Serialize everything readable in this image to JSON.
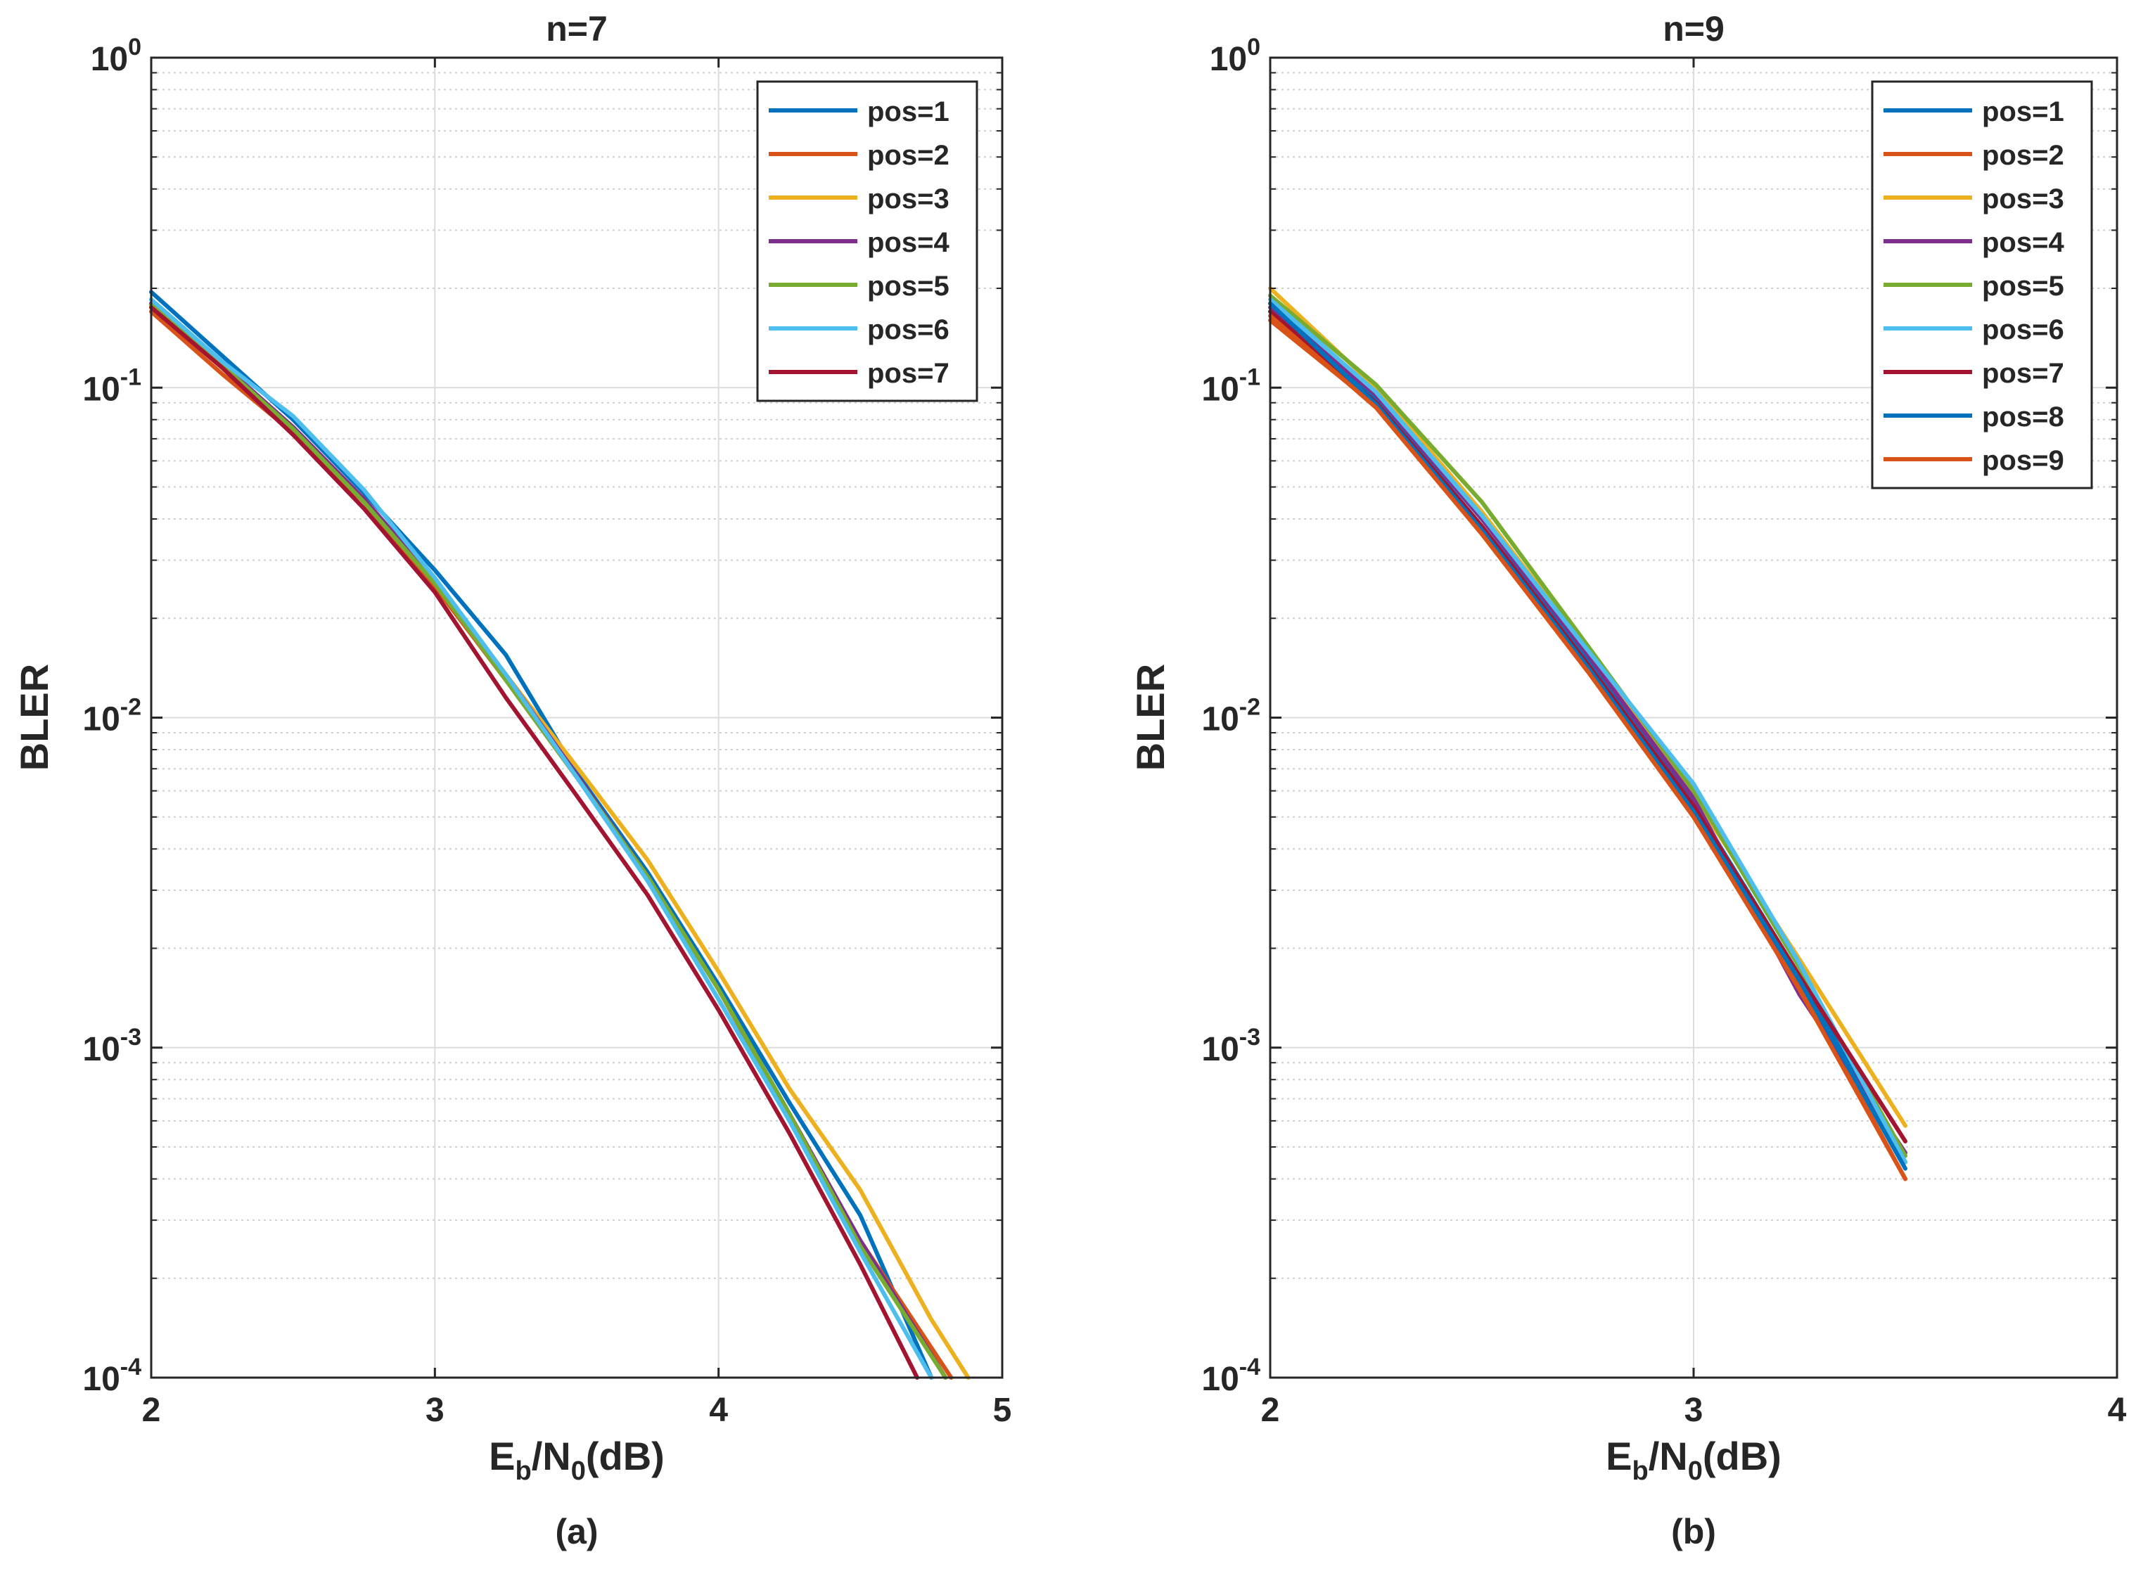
{
  "chart_data": [
    {
      "type": "line",
      "panel": "left",
      "title": "n=7",
      "caption": "(a)",
      "xlabel": {
        "main": "E",
        "sub1": "b",
        "mid": "/N",
        "sub2": "0",
        "tail": "(dB)"
      },
      "ylabel": "BLER",
      "xlim": [
        2,
        5
      ],
      "ylim": [
        0.0001,
        1
      ],
      "yscale": "log",
      "grid": true,
      "xticks": [
        2,
        3,
        4,
        5
      ],
      "yticks": [
        {
          "value": 1,
          "base": "10",
          "exp": "0"
        },
        {
          "value": 0.1,
          "base": "10",
          "exp": "-1"
        },
        {
          "value": 0.01,
          "base": "10",
          "exp": "-2"
        },
        {
          "value": 0.001,
          "base": "10",
          "exp": "-3"
        },
        {
          "value": 0.0001,
          "base": "10",
          "exp": "-4"
        }
      ],
      "legend_position": "top-right",
      "series": [
        {
          "name": "pos=1",
          "color": "#0072BD",
          "x": [
            2,
            2.25,
            2.5,
            2.75,
            3,
            3.25,
            3.5,
            3.75,
            4,
            4.25,
            4.5,
            4.75
          ],
          "y": [
            0.195,
            0.125,
            0.08,
            0.048,
            0.028,
            0.0155,
            0.0068,
            0.0034,
            0.00155,
            0.00068,
            0.00031,
            0.0001
          ]
        },
        {
          "name": "pos=2",
          "color": "#D95319",
          "x": [
            2,
            2.25,
            2.5,
            2.75,
            3,
            3.25,
            3.5,
            3.75,
            4,
            4.25,
            4.5,
            4.82
          ],
          "y": [
            0.17,
            0.11,
            0.073,
            0.045,
            0.025,
            0.013,
            0.0066,
            0.0033,
            0.0015,
            0.00062,
            0.00026,
            0.0001
          ]
        },
        {
          "name": "pos=3",
          "color": "#EDB120",
          "x": [
            2,
            2.25,
            2.5,
            2.75,
            3,
            3.25,
            3.5,
            3.75,
            4,
            4.25,
            4.5,
            4.75,
            4.88
          ],
          "y": [
            0.175,
            0.115,
            0.075,
            0.046,
            0.026,
            0.0135,
            0.0071,
            0.0037,
            0.0017,
            0.00075,
            0.00037,
            0.00015,
            0.0001
          ]
        },
        {
          "name": "pos=4",
          "color": "#7E2F8E",
          "x": [
            2,
            2.25,
            2.5,
            2.75,
            3,
            3.25,
            3.5,
            3.75,
            4,
            4.25,
            4.5,
            4.8
          ],
          "y": [
            0.18,
            0.118,
            0.076,
            0.046,
            0.026,
            0.0135,
            0.0067,
            0.0033,
            0.0015,
            0.00063,
            0.00026,
            0.0001
          ]
        },
        {
          "name": "pos=5",
          "color": "#77AC30",
          "x": [
            2,
            2.25,
            2.5,
            2.75,
            3,
            3.25,
            3.5,
            3.75,
            4,
            4.25,
            4.5,
            4.8
          ],
          "y": [
            0.178,
            0.117,
            0.075,
            0.045,
            0.0255,
            0.013,
            0.0066,
            0.0033,
            0.0015,
            0.00063,
            0.00025,
            0.0001
          ]
        },
        {
          "name": "pos=6",
          "color": "#4DBEEE",
          "x": [
            2,
            2.25,
            2.5,
            2.75,
            3,
            3.25,
            3.5,
            3.75,
            4,
            4.25,
            4.5,
            4.75
          ],
          "y": [
            0.185,
            0.12,
            0.082,
            0.049,
            0.0265,
            0.0135,
            0.0066,
            0.0032,
            0.0014,
            0.0006,
            0.00024,
            0.0001
          ]
        },
        {
          "name": "pos=7",
          "color": "#A2142F",
          "x": [
            2,
            2.25,
            2.5,
            2.75,
            3,
            3.25,
            3.5,
            3.75,
            4,
            4.25,
            4.5,
            4.7
          ],
          "y": [
            0.175,
            0.115,
            0.072,
            0.043,
            0.024,
            0.0115,
            0.0058,
            0.0029,
            0.0013,
            0.00055,
            0.00022,
            0.0001
          ]
        }
      ]
    },
    {
      "type": "line",
      "panel": "right",
      "title": "n=9",
      "caption": "(b)",
      "xlabel": {
        "main": "E",
        "sub1": "b",
        "mid": "/N",
        "sub2": "0",
        "tail": "(dB)"
      },
      "ylabel": "BLER",
      "xlim": [
        2,
        4
      ],
      "ylim": [
        0.0001,
        1
      ],
      "yscale": "log",
      "grid": true,
      "xticks": [
        2,
        3,
        4
      ],
      "yticks": [
        {
          "value": 1,
          "base": "10",
          "exp": "0"
        },
        {
          "value": 0.1,
          "base": "10",
          "exp": "-1"
        },
        {
          "value": 0.01,
          "base": "10",
          "exp": "-2"
        },
        {
          "value": 0.001,
          "base": "10",
          "exp": "-3"
        },
        {
          "value": 0.0001,
          "base": "10",
          "exp": "-4"
        }
      ],
      "legend_position": "top-right",
      "series": [
        {
          "name": "pos=1",
          "color": "#0072BD",
          "x": [
            2,
            2.25,
            2.5,
            2.75,
            3,
            3.25,
            3.5
          ],
          "y": [
            0.18,
            0.092,
            0.038,
            0.015,
            0.0055,
            0.00165,
            0.00045
          ]
        },
        {
          "name": "pos=2",
          "color": "#D95319",
          "x": [
            2,
            2.25,
            2.5,
            2.75,
            3,
            3.25,
            3.5
          ],
          "y": [
            0.16,
            0.088,
            0.036,
            0.014,
            0.005,
            0.00155,
            0.0004
          ]
        },
        {
          "name": "pos=3",
          "color": "#EDB120",
          "x": [
            2,
            2.25,
            2.5,
            2.75,
            3,
            3.25,
            3.5
          ],
          "y": [
            0.2,
            0.1,
            0.042,
            0.016,
            0.0058,
            0.00185,
            0.00058
          ]
        },
        {
          "name": "pos=4",
          "color": "#7E2F8E",
          "x": [
            2,
            2.25,
            2.5,
            2.75,
            3,
            3.25,
            3.5
          ],
          "y": [
            0.175,
            0.095,
            0.04,
            0.0155,
            0.0057,
            0.00145,
            0.00048
          ]
        },
        {
          "name": "pos=5",
          "color": "#77AC30",
          "x": [
            2,
            2.25,
            2.5,
            2.75,
            3,
            3.25,
            3.5
          ],
          "y": [
            0.19,
            0.102,
            0.045,
            0.0165,
            0.006,
            0.00175,
            0.00047
          ]
        },
        {
          "name": "pos=6",
          "color": "#4DBEEE",
          "x": [
            2,
            2.25,
            2.5,
            2.75,
            3,
            3.25,
            3.5
          ],
          "y": [
            0.185,
            0.097,
            0.041,
            0.016,
            0.0063,
            0.0018,
            0.00045
          ]
        },
        {
          "name": "pos=7",
          "color": "#A2142F",
          "x": [
            2,
            2.25,
            2.5,
            2.75,
            3,
            3.25,
            3.5
          ],
          "y": [
            0.17,
            0.09,
            0.038,
            0.0145,
            0.0054,
            0.00165,
            0.00052
          ]
        },
        {
          "name": "pos=8",
          "color": "#0072BD",
          "x": [
            2,
            2.25,
            2.5,
            2.75,
            3,
            3.25,
            3.5
          ],
          "y": [
            0.18,
            0.089,
            0.037,
            0.0142,
            0.0052,
            0.0016,
            0.00043
          ]
        },
        {
          "name": "pos=9",
          "color": "#D95319",
          "x": [
            2,
            2.25,
            2.5,
            2.75,
            3,
            3.25,
            3.5
          ],
          "y": [
            0.165,
            0.087,
            0.036,
            0.0138,
            0.005,
            0.0015,
            0.0004
          ]
        }
      ]
    }
  ]
}
